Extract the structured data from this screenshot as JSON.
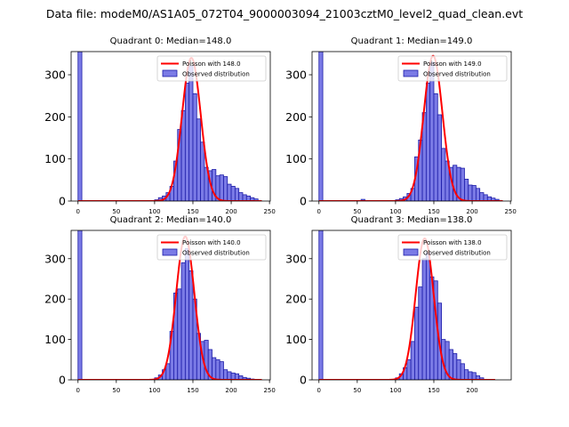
{
  "figure_title": "Data file: modeM0/AS1A05_072T04_9000003094_21003cztM0_level2_quad_clean.evt",
  "colors": {
    "bar_fill": "#7b7be6",
    "bar_edge": "#1c1ca8",
    "poisson_line": "#ff0000"
  },
  "chart_data": [
    {
      "type": "bar",
      "title": "Quadrant 0: Median=148.0",
      "xlim": [
        -9,
        251
      ],
      "ylim": [
        0,
        355
      ],
      "xticks": [
        0,
        50,
        100,
        150,
        200,
        250
      ],
      "yticks": [
        0,
        100,
        200,
        300
      ],
      "bin_width": 5,
      "median": 148.0,
      "legend": {
        "placement": "top-right",
        "entries": [
          "Poisson with 148.0",
          "Observed distribution"
        ]
      },
      "bins": [
        {
          "x": 0,
          "y": 355
        },
        {
          "x": 100,
          "y": 3
        },
        {
          "x": 105,
          "y": 8
        },
        {
          "x": 110,
          "y": 12
        },
        {
          "x": 115,
          "y": 20
        },
        {
          "x": 120,
          "y": 35
        },
        {
          "x": 125,
          "y": 95
        },
        {
          "x": 130,
          "y": 170
        },
        {
          "x": 135,
          "y": 215
        },
        {
          "x": 140,
          "y": 280
        },
        {
          "x": 145,
          "y": 320
        },
        {
          "x": 150,
          "y": 255
        },
        {
          "x": 155,
          "y": 195
        },
        {
          "x": 160,
          "y": 140
        },
        {
          "x": 165,
          "y": 80
        },
        {
          "x": 170,
          "y": 72
        },
        {
          "x": 175,
          "y": 75
        },
        {
          "x": 180,
          "y": 60
        },
        {
          "x": 185,
          "y": 62
        },
        {
          "x": 190,
          "y": 58
        },
        {
          "x": 195,
          "y": 40
        },
        {
          "x": 200,
          "y": 35
        },
        {
          "x": 205,
          "y": 30
        },
        {
          "x": 210,
          "y": 20
        },
        {
          "x": 215,
          "y": 15
        },
        {
          "x": 220,
          "y": 12
        },
        {
          "x": 225,
          "y": 8
        },
        {
          "x": 230,
          "y": 5
        }
      ],
      "poisson_curve": {
        "peak": 340,
        "x_range": [
          0,
          240
        ]
      }
    },
    {
      "type": "bar",
      "title": "Quadrant 1: Median=149.0",
      "xlim": [
        -9,
        251
      ],
      "ylim": [
        0,
        355
      ],
      "xticks": [
        0,
        50,
        100,
        150,
        200,
        250
      ],
      "yticks": [
        0,
        100,
        200,
        300
      ],
      "bin_width": 5,
      "median": 149.0,
      "legend": {
        "placement": "top-right",
        "entries": [
          "Poisson with 149.0",
          "Observed distribution"
        ]
      },
      "bins": [
        {
          "x": 0,
          "y": 355
        },
        {
          "x": 55,
          "y": 4
        },
        {
          "x": 100,
          "y": 3
        },
        {
          "x": 105,
          "y": 6
        },
        {
          "x": 110,
          "y": 10
        },
        {
          "x": 115,
          "y": 18
        },
        {
          "x": 120,
          "y": 30
        },
        {
          "x": 125,
          "y": 105
        },
        {
          "x": 130,
          "y": 145
        },
        {
          "x": 135,
          "y": 210
        },
        {
          "x": 140,
          "y": 280
        },
        {
          "x": 145,
          "y": 330
        },
        {
          "x": 150,
          "y": 255
        },
        {
          "x": 155,
          "y": 205
        },
        {
          "x": 160,
          "y": 125
        },
        {
          "x": 165,
          "y": 95
        },
        {
          "x": 170,
          "y": 80
        },
        {
          "x": 175,
          "y": 85
        },
        {
          "x": 180,
          "y": 80
        },
        {
          "x": 185,
          "y": 78
        },
        {
          "x": 190,
          "y": 52
        },
        {
          "x": 195,
          "y": 38
        },
        {
          "x": 200,
          "y": 37
        },
        {
          "x": 205,
          "y": 30
        },
        {
          "x": 210,
          "y": 20
        },
        {
          "x": 215,
          "y": 15
        },
        {
          "x": 220,
          "y": 10
        },
        {
          "x": 225,
          "y": 7
        },
        {
          "x": 230,
          "y": 4
        }
      ],
      "poisson_curve": {
        "peak": 345,
        "x_range": [
          0,
          240
        ]
      }
    },
    {
      "type": "bar",
      "title": "Quadrant 2: Median=140.0",
      "xlim": [
        -9,
        251
      ],
      "ylim": [
        0,
        370
      ],
      "xticks": [
        0,
        50,
        100,
        150,
        200,
        250
      ],
      "yticks": [
        0,
        100,
        200,
        300
      ],
      "bin_width": 5,
      "median": 140.0,
      "legend": {
        "placement": "top-right",
        "entries": [
          "Poisson with 140.0",
          "Observed distribution"
        ]
      },
      "bins": [
        {
          "x": 0,
          "y": 370
        },
        {
          "x": 100,
          "y": 5
        },
        {
          "x": 105,
          "y": 12
        },
        {
          "x": 110,
          "y": 25
        },
        {
          "x": 115,
          "y": 40
        },
        {
          "x": 120,
          "y": 120
        },
        {
          "x": 125,
          "y": 215
        },
        {
          "x": 130,
          "y": 225
        },
        {
          "x": 135,
          "y": 290
        },
        {
          "x": 140,
          "y": 325
        },
        {
          "x": 145,
          "y": 270
        },
        {
          "x": 150,
          "y": 200
        },
        {
          "x": 155,
          "y": 115
        },
        {
          "x": 160,
          "y": 95
        },
        {
          "x": 165,
          "y": 98
        },
        {
          "x": 170,
          "y": 75
        },
        {
          "x": 175,
          "y": 55
        },
        {
          "x": 180,
          "y": 50
        },
        {
          "x": 185,
          "y": 45
        },
        {
          "x": 190,
          "y": 25
        },
        {
          "x": 195,
          "y": 20
        },
        {
          "x": 200,
          "y": 17
        },
        {
          "x": 205,
          "y": 15
        },
        {
          "x": 210,
          "y": 10
        },
        {
          "x": 215,
          "y": 6
        },
        {
          "x": 220,
          "y": 4
        },
        {
          "x": 225,
          "y": 2
        }
      ],
      "poisson_curve": {
        "peak": 355,
        "x_range": [
          0,
          240
        ]
      }
    },
    {
      "type": "bar",
      "title": "Quadrant 3: Median=138.0",
      "xlim": [
        -9,
        251
      ],
      "ylim": [
        0,
        370
      ],
      "xticks": [
        0,
        50,
        100,
        150,
        200
      ],
      "yticks": [
        0,
        100,
        200,
        300
      ],
      "bin_width": 5,
      "median": 138.0,
      "legend": {
        "placement": "top-right",
        "entries": [
          "Poisson with 138.0",
          "Observed distribution"
        ]
      },
      "bins": [
        {
          "x": 0,
          "y": 370
        },
        {
          "x": 100,
          "y": 5
        },
        {
          "x": 105,
          "y": 15
        },
        {
          "x": 110,
          "y": 30
        },
        {
          "x": 115,
          "y": 50
        },
        {
          "x": 120,
          "y": 95
        },
        {
          "x": 125,
          "y": 180
        },
        {
          "x": 130,
          "y": 230
        },
        {
          "x": 135,
          "y": 300
        },
        {
          "x": 140,
          "y": 315
        },
        {
          "x": 145,
          "y": 255
        },
        {
          "x": 150,
          "y": 245
        },
        {
          "x": 155,
          "y": 190
        },
        {
          "x": 160,
          "y": 100
        },
        {
          "x": 165,
          "y": 95
        },
        {
          "x": 170,
          "y": 75
        },
        {
          "x": 175,
          "y": 65
        },
        {
          "x": 180,
          "y": 50
        },
        {
          "x": 185,
          "y": 40
        },
        {
          "x": 190,
          "y": 25
        },
        {
          "x": 195,
          "y": 20
        },
        {
          "x": 200,
          "y": 18
        },
        {
          "x": 205,
          "y": 10
        },
        {
          "x": 210,
          "y": 5
        }
      ],
      "poisson_curve": {
        "peak": 350,
        "x_range": [
          0,
          230
        ]
      }
    }
  ]
}
